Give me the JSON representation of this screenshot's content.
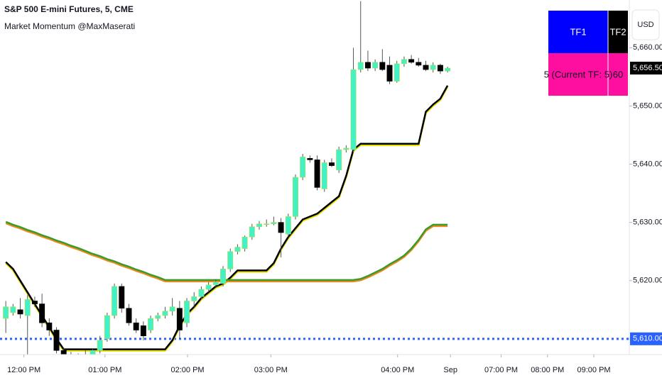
{
  "chart_data": {
    "type": "candlestick",
    "title": "S&P 500 E-mini Futures, 5, CME",
    "subtitle": "Market Momentum @MaxMaserati",
    "open": [
      5613.5,
      5614.5,
      5615,
      5614,
      5616.5,
      5616,
      5612.75,
      5611.5,
      5608,
      5607,
      5606.5,
      5607.25,
      5607,
      5608,
      5610,
      5614,
      5619,
      5615.25,
      5612.75,
      5612.25,
      5611.5,
      5613.5,
      5614,
      5614.75,
      5615.25,
      5612.75,
      5616.5,
      5617.25,
      5618.5,
      5619.25,
      5619.5,
      5622,
      5625,
      5625.5,
      5627.5,
      5629.25,
      5629.75,
      5629.75,
      5630,
      5628,
      5631,
      5637.75,
      5641,
      5640.75,
      5635.75,
      5640.25,
      5639,
      5642.5,
      5642.5,
      5656.25,
      5657.5,
      5656.5,
      5657.5,
      5657,
      5654.25,
      5657.25,
      5658,
      5657.5,
      5657,
      5656.25,
      5657,
      5656
    ],
    "high": [
      5616.5,
      5616,
      5617,
      5617.5,
      5617.25,
      5617.75,
      5613.5,
      5612,
      5608.5,
      5607.75,
      5607.5,
      5608,
      5608.25,
      5610.5,
      5614.5,
      5619.5,
      5619.5,
      5616,
      5613.5,
      5613,
      5614,
      5614.5,
      5615.5,
      5617,
      5616.5,
      5617,
      5618,
      5619,
      5619.75,
      5620.25,
      5622.5,
      5625.5,
      5626.25,
      5627.75,
      5629.75,
      5630.25,
      5630.5,
      5631,
      5630.75,
      5631.5,
      5638.25,
      5641.75,
      5641.5,
      5641.5,
      5640.75,
      5641,
      5643,
      5643.25,
      5660,
      5668,
      5659.5,
      5658,
      5659.75,
      5658.5,
      5657.75,
      5658.5,
      5658.75,
      5658.25,
      5657.75,
      5657.5,
      5657.25,
      5656.75
    ],
    "low": [
      5611,
      5614,
      5613.5,
      5606,
      5615.5,
      5612,
      5610.5,
      5607.5,
      5606.5,
      5606,
      5606,
      5606.5,
      5606.75,
      5607.5,
      5609.5,
      5613.5,
      5614.5,
      5612.25,
      5611,
      5609.75,
      5611,
      5613,
      5613.5,
      5614,
      5610,
      5612,
      5615.5,
      5616.75,
      5618,
      5618.75,
      5619,
      5621.5,
      5624.5,
      5625,
      5627,
      5628.75,
      5629.25,
      5629.5,
      5624,
      5627.5,
      5630.5,
      5637.25,
      5640.25,
      5635.5,
      5635.25,
      5639.5,
      5638.5,
      5642,
      5642,
      5655.75,
      5656,
      5656,
      5656,
      5653.75,
      5654,
      5656.75,
      5657.25,
      5656.75,
      5656,
      5655.75,
      5655.5,
      5655.75
    ],
    "close": [
      5615.5,
      5615.5,
      5614.25,
      5616.75,
      5616,
      5612.75,
      5611.5,
      5608,
      5607,
      5606.5,
      5607.25,
      5607,
      5608,
      5609.75,
      5614,
      5619,
      5615.25,
      5612.75,
      5611.5,
      5610.5,
      5613.5,
      5614,
      5614.75,
      5615.5,
      5611.5,
      5616.5,
      5617.25,
      5618.5,
      5619.25,
      5619.75,
      5622,
      5625,
      5625.75,
      5627.5,
      5629.25,
      5629.75,
      5629.75,
      5630,
      5628.25,
      5631,
      5637.75,
      5641.25,
      5640.75,
      5636,
      5640.25,
      5639.75,
      5642.5,
      5642.75,
      5656.25,
      5657.5,
      5656.5,
      5657.5,
      5656.25,
      5654.25,
      5657.25,
      5658,
      5657.5,
      5657,
      5656.25,
      5657,
      5656,
      5656.5
    ],
    "bull_color": "#42f2c6",
    "bear_color": "#000000",
    "lines": [
      {
        "color": "#000000",
        "shadow_color": "#e8e000",
        "values": [
          5623.2,
          5622,
          5620,
          5618,
          5616,
          5614,
          5612,
          5610,
          5608.2,
          5608.2,
          5608.2,
          5608.2,
          5608.2,
          5608.2,
          5608.2,
          5608.2,
          5608.2,
          5608.2,
          5608.2,
          5608.2,
          5608.2,
          5608.2,
          5608.2,
          5609.75,
          5612.25,
          5614.25,
          5615.5,
          5617,
          5618,
          5619,
          5619.5,
          5620.5,
          5621.75,
          5621.75,
          5621.75,
          5621.75,
          5621.75,
          5623,
          5625.5,
          5627.5,
          5629,
          5630.5,
          5631,
          5631.5,
          5632.5,
          5633.5,
          5634.5,
          5638,
          5642.5,
          5643.5,
          5643.5,
          5643.5,
          5643.5,
          5643.5,
          5643.5,
          5643.5,
          5643.5,
          5643.5,
          5649,
          5650.25,
          5651.25,
          5653.5
        ]
      },
      {
        "color": "#3c9a2c",
        "shadow_color": "#f08a1c",
        "values": [
          5630.1,
          5629.6,
          5629.2,
          5628.7,
          5628.3,
          5627.8,
          5627.4,
          5626.9,
          5626.5,
          5626,
          5625.6,
          5625.1,
          5624.6,
          5624.2,
          5623.7,
          5623.3,
          5622.8,
          5622.4,
          5621.9,
          5621.5,
          5621,
          5620.6,
          5620.1,
          5620.1,
          5620.1,
          5620.1,
          5620.1,
          5620.1,
          5620.1,
          5620.1,
          5620.1,
          5620.1,
          5620.1,
          5620.1,
          5620.1,
          5620.1,
          5620.1,
          5620.1,
          5620.1,
          5620.1,
          5620.1,
          5620.1,
          5620.1,
          5620.1,
          5620.1,
          5620.1,
          5620.1,
          5620.1,
          5620.1,
          5620.3,
          5620.8,
          5621.4,
          5622,
          5622.8,
          5623.5,
          5624.3,
          5625.5,
          5627,
          5628.8,
          5629.6,
          5629.6,
          5629.6
        ]
      }
    ],
    "xlim": [
      -0.8,
      86.1
    ],
    "xticks": [
      {
        "value": 2.5,
        "label": "12:00 PM"
      },
      {
        "value": 13.7,
        "label": "01:00 PM"
      },
      {
        "value": 25.1,
        "label": "02:00 PM"
      },
      {
        "value": 36.6,
        "label": "03:00 PM"
      },
      {
        "value": 54.1,
        "label": "04:00 PM"
      },
      {
        "value": 61.4,
        "label": "Sep"
      },
      {
        "value": 68.4,
        "label": "07:00 PM"
      },
      {
        "value": 74.8,
        "label": "08:00 PM"
      },
      {
        "value": 81.2,
        "label": "09:00 PM"
      }
    ],
    "ylim": [
      5607.3,
      5668.2
    ],
    "yticks": [
      {
        "value": 5610,
        "label": "5,610.00"
      },
      {
        "value": 5620,
        "label": "5,620.00"
      },
      {
        "value": 5630,
        "label": "5,630.00"
      },
      {
        "value": 5640,
        "label": "5,640.00"
      },
      {
        "value": 5650,
        "label": "5,650.00"
      },
      {
        "value": 5660,
        "label": "5,660.00"
      }
    ],
    "reference_line": {
      "value": 5610,
      "color": "#2962ff"
    },
    "last_price": {
      "value": 5656.5,
      "label": "5,656.50"
    },
    "currency": "USD"
  },
  "table": {
    "header": [
      "TF1",
      "TF2"
    ],
    "rows": [
      [
        "5 (Current TF: 5)",
        "60"
      ]
    ]
  }
}
